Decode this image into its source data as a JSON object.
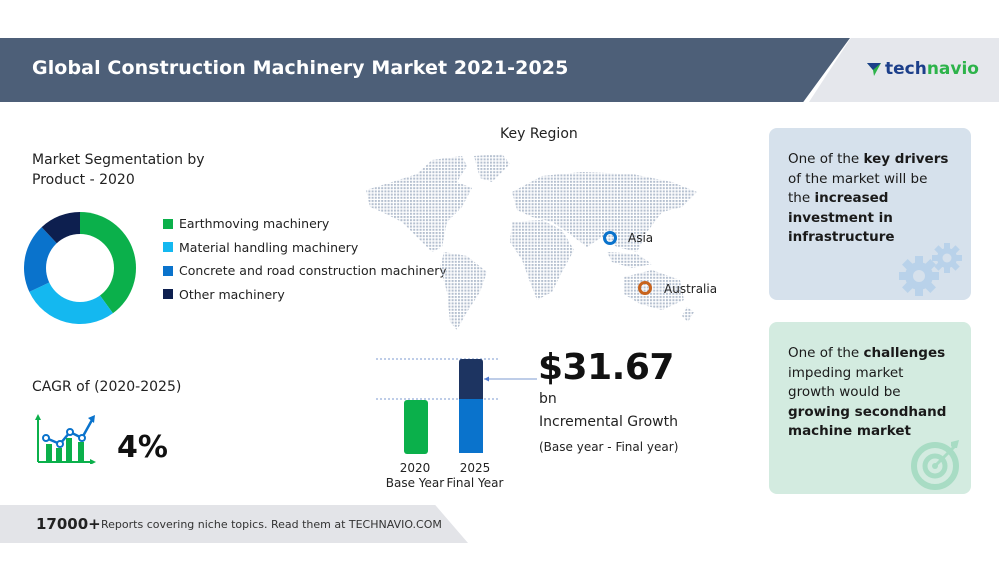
{
  "header": {
    "title": "Global Construction Machinery Market 2021-2025",
    "logo": {
      "part1": "tech",
      "part2": "navio",
      "icon": "technavio-arrow-icon"
    },
    "colors": {
      "banner": "#4d5f78",
      "logo_bg": "#e5e7ec",
      "logo_dark": "#1c3f8a",
      "logo_green": "#2db34a"
    }
  },
  "segmentation": {
    "title_line1": "Market Segmentation by",
    "title_line2": "Product - 2020",
    "items": [
      {
        "label": "Earthmoving machinery",
        "color": "#0bb04b",
        "share": 40
      },
      {
        "label": "Material handling machinery",
        "color": "#14b8f0",
        "share": 28
      },
      {
        "label": "Concrete and road construction machinery",
        "color": "#0a73cc",
        "share": 20
      },
      {
        "label": "Other machinery",
        "color": "#0d1f4f",
        "share": 12
      }
    ]
  },
  "key_region": {
    "title": "Key Region",
    "pins": [
      {
        "label": "Asia",
        "color": "#0a73cc"
      },
      {
        "label": "Australia",
        "color": "#c8641e"
      }
    ]
  },
  "cagr": {
    "label": "CAGR of (2020-2025)",
    "value": "4%",
    "icon": "growth-chart-icon"
  },
  "incremental_growth": {
    "value": "$31.67",
    "unit": "bn",
    "label": "Incremental Growth",
    "sublabel": "(Base year - Final year)",
    "bars": [
      {
        "year": "2020",
        "caption": "Base Year",
        "color": "#0bb04b"
      },
      {
        "year": "2025",
        "caption": "Final Year",
        "color_base": "#0a73cc",
        "color_growth": "#1d3461"
      }
    ]
  },
  "drivers_card": {
    "prefix": "One of the ",
    "bold1": "key drivers",
    "middle": " of the market will be the ",
    "bold2": "increased investment in infrastructure",
    "icon": "gears-icon",
    "bg": "#d6e1ec"
  },
  "challenges_card": {
    "prefix": "One of the ",
    "bold1": "challenges",
    "middle": " impeding market growth would be ",
    "bold2": "growing secondhand machine market",
    "icon": "target-icon",
    "bg": "#d3ebe0"
  },
  "footer": {
    "count": "17000+",
    "text": "Reports covering niche topics. Read them at TECHNAVIO.COM"
  },
  "chart_data": [
    {
      "type": "pie",
      "title": "Market Segmentation by Product - 2020",
      "categories": [
        "Earthmoving machinery",
        "Material handling machinery",
        "Concrete and road construction machinery",
        "Other machinery"
      ],
      "values": [
        40,
        28,
        20,
        12
      ],
      "legend_position": "right"
    },
    {
      "type": "bar",
      "title": "Incremental Growth",
      "categories": [
        "2020 Base Year",
        "2025 Final Year"
      ],
      "series": [
        {
          "name": "Base",
          "values": [
            1,
            1
          ]
        },
        {
          "name": "Incremental Growth",
          "values": [
            0,
            0.72
          ]
        }
      ],
      "annotation": "$31.67 bn Incremental Growth (Base year - Final year)"
    }
  ]
}
